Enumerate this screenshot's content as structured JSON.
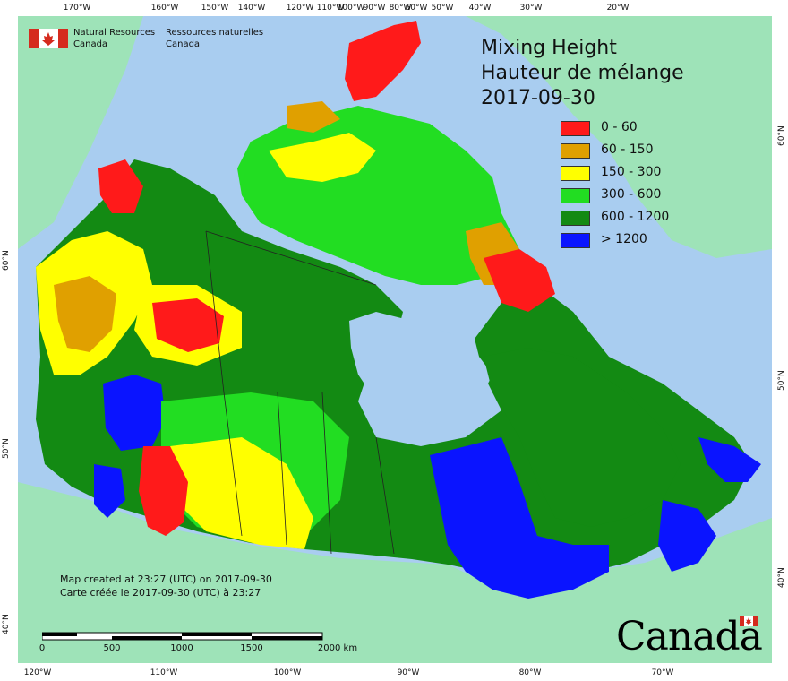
{
  "map": {
    "title": "Mixing Height",
    "title_fr": "Hauteur de mélange",
    "date": "2017-09-30",
    "legend": [
      {
        "label": "0 - 60",
        "color": "#ff1a1a"
      },
      {
        "label": "60 - 150",
        "color": "#e0a000"
      },
      {
        "label": "150 - 300",
        "color": "#ffff00"
      },
      {
        "label": "300 - 600",
        "color": "#22dd22"
      },
      {
        "label": "600 - 1200",
        "color": "#138a13"
      },
      {
        "label": "> 1200",
        "color": "#0a14ff"
      }
    ],
    "water_color": "#a9cdf0",
    "land_outside_color": "#9ee3b8"
  },
  "agency": {
    "name_en_1": "Natural Resources",
    "name_en_2": "Canada",
    "name_fr_1": "Ressources naturelles",
    "name_fr_2": "Canada"
  },
  "credits": {
    "line_en": "Map created at 23:27 (UTC) on 2017-09-30",
    "line_fr": "Carte créée le 2017-09-30 (UTC) à 23:27"
  },
  "scale_bar": {
    "labels": [
      "0",
      "500",
      "1000",
      "1500",
      "2000  km"
    ]
  },
  "wordmark": "Canada",
  "ticks": {
    "top": [
      "170°W",
      "160°W",
      "150°W",
      "140°W",
      "120°W",
      "110°W",
      "100°W",
      "90°W",
      "80°W",
      "60°W",
      "50°W",
      "40°W",
      "30°W",
      "20°W"
    ],
    "bottom": [
      "120°W",
      "110°W",
      "100°W",
      "90°W",
      "80°W",
      "70°W"
    ],
    "left": [
      "60°N",
      "50°N",
      "40°N"
    ],
    "right": [
      "60°N",
      "50°N",
      "40°N"
    ]
  }
}
